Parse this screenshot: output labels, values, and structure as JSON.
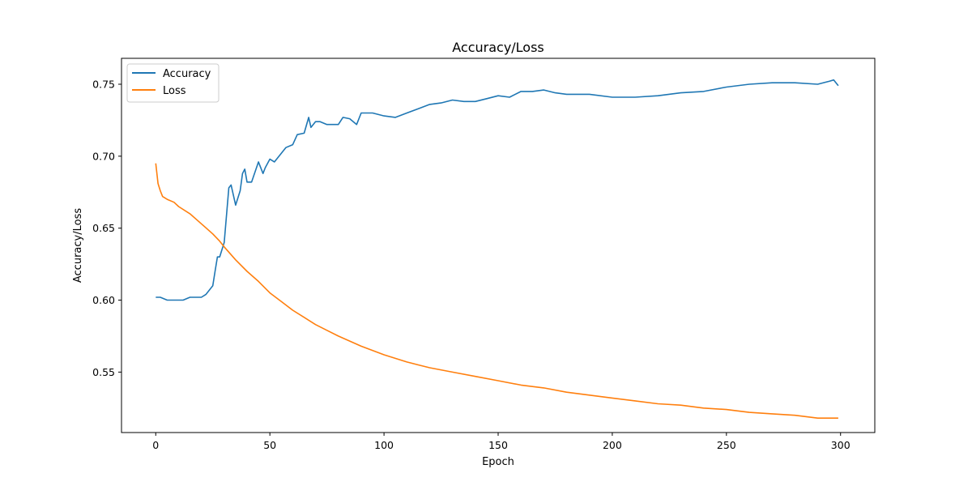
{
  "chart_data": {
    "type": "line",
    "title": "Accuracy/Loss",
    "xlabel": "Epoch",
    "ylabel": "Accuracy/Loss",
    "xlim": [
      -15,
      315
    ],
    "ylim": [
      0.508,
      0.768
    ],
    "xticks": [
      0,
      50,
      100,
      150,
      200,
      250,
      300
    ],
    "yticks": [
      0.55,
      0.6,
      0.65,
      0.7,
      0.75
    ],
    "ytick_labels": [
      "0.55",
      "0.60",
      "0.65",
      "0.70",
      "0.75"
    ],
    "grid": false,
    "legend_position": "top-left",
    "series": [
      {
        "name": "Accuracy",
        "color": "#1f77b4",
        "x": [
          0,
          2,
          5,
          10,
          12,
          15,
          20,
          22,
          25,
          26,
          27,
          28,
          30,
          32,
          33,
          35,
          37,
          38,
          39,
          40,
          42,
          45,
          47,
          48,
          50,
          52,
          55,
          57,
          60,
          62,
          65,
          67,
          68,
          70,
          72,
          75,
          80,
          82,
          85,
          88,
          90,
          95,
          100,
          105,
          110,
          115,
          120,
          125,
          130,
          135,
          140,
          145,
          150,
          155,
          160,
          165,
          170,
          175,
          180,
          190,
          200,
          210,
          220,
          230,
          240,
          250,
          260,
          270,
          280,
          290,
          295,
          297,
          299
        ],
        "values": [
          0.602,
          0.602,
          0.6,
          0.6,
          0.6,
          0.602,
          0.602,
          0.604,
          0.61,
          0.62,
          0.63,
          0.63,
          0.64,
          0.678,
          0.68,
          0.666,
          0.676,
          0.688,
          0.691,
          0.682,
          0.682,
          0.696,
          0.688,
          0.692,
          0.698,
          0.696,
          0.702,
          0.706,
          0.708,
          0.715,
          0.716,
          0.727,
          0.72,
          0.724,
          0.724,
          0.722,
          0.722,
          0.727,
          0.726,
          0.722,
          0.73,
          0.73,
          0.728,
          0.727,
          0.73,
          0.733,
          0.736,
          0.737,
          0.739,
          0.738,
          0.738,
          0.74,
          0.742,
          0.741,
          0.745,
          0.745,
          0.746,
          0.744,
          0.743,
          0.743,
          0.741,
          0.741,
          0.742,
          0.744,
          0.745,
          0.748,
          0.75,
          0.751,
          0.751,
          0.75,
          0.752,
          0.753,
          0.749
        ]
      },
      {
        "name": "Loss",
        "color": "#ff7f0e",
        "x": [
          0,
          1,
          2,
          3,
          5,
          8,
          10,
          15,
          20,
          25,
          28,
          30,
          35,
          40,
          45,
          50,
          55,
          60,
          65,
          70,
          75,
          80,
          90,
          100,
          110,
          115,
          120,
          130,
          140,
          150,
          160,
          170,
          180,
          190,
          200,
          210,
          220,
          230,
          240,
          250,
          260,
          270,
          280,
          290,
          299
        ],
        "values": [
          0.695,
          0.681,
          0.676,
          0.672,
          0.67,
          0.668,
          0.665,
          0.66,
          0.653,
          0.646,
          0.641,
          0.637,
          0.628,
          0.62,
          0.613,
          0.605,
          0.599,
          0.593,
          0.588,
          0.583,
          0.579,
          0.575,
          0.568,
          0.562,
          0.557,
          0.555,
          0.553,
          0.55,
          0.547,
          0.544,
          0.541,
          0.539,
          0.536,
          0.534,
          0.532,
          0.53,
          0.528,
          0.527,
          0.525,
          0.524,
          0.522,
          0.521,
          0.52,
          0.518,
          0.518
        ]
      }
    ]
  }
}
